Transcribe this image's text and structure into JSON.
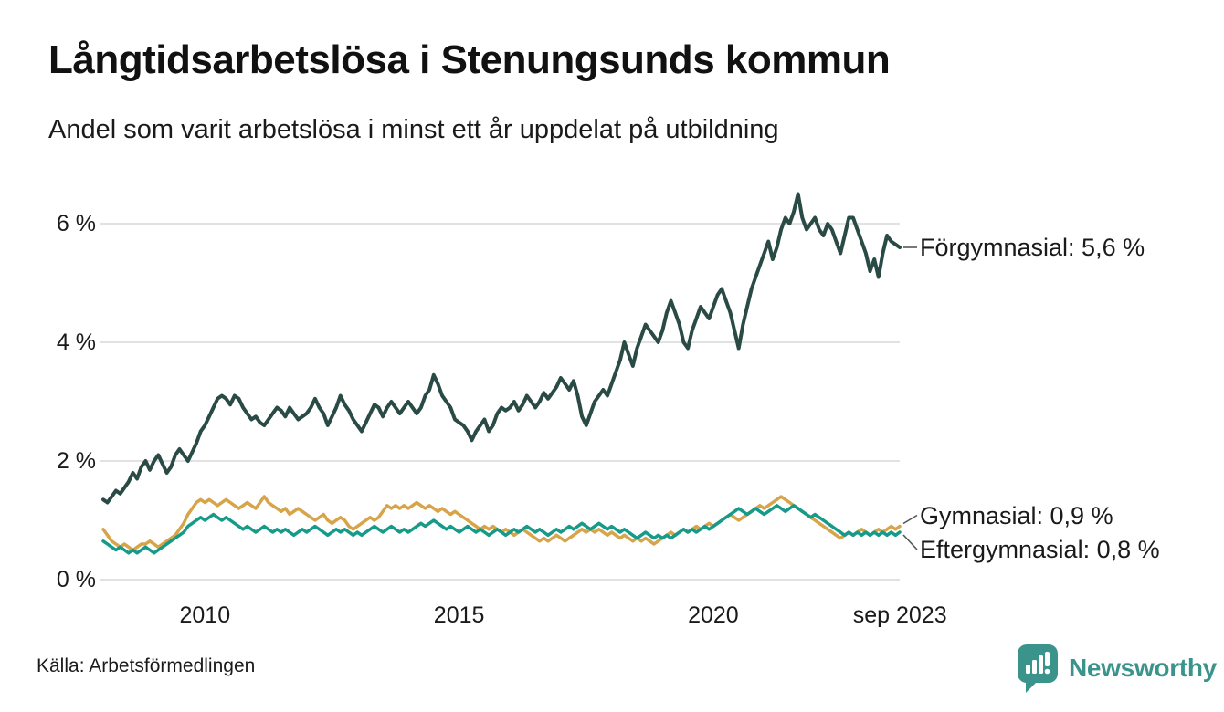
{
  "title": "Långtidsarbetslösa i Stenungsunds kommun",
  "subtitle": "Andel som varit arbetslösa i minst ett år uppdelat på utbildning",
  "source": "Källa: Arbetsförmedlingen",
  "branding": {
    "name": "Newsworthy",
    "color": "#3a948c",
    "icon": "newsworthy-speech-bubble-bar-chart-icon"
  },
  "colors": {
    "background": "#ffffff",
    "text": "#1a1a1a",
    "gridline": "#e2e2e2",
    "connector": "#555555",
    "forgymnasial": "#2a4b45",
    "gymnasial": "#d7a449",
    "eftergymnasial": "#169a89"
  },
  "chart_data": {
    "type": "line",
    "title": "Långtidsarbetslösa i Stenungsunds kommun",
    "subtitle": "Andel som varit arbetslösa i minst ett år uppdelat på utbildning",
    "unit": "%",
    "frequency": "monthly",
    "x_start": "2008-01",
    "x_end": "2023-09",
    "ylim": [
      0,
      6.8
    ],
    "grid": "horizontal",
    "legend_position": "end-of-line-labels",
    "yticks": [
      {
        "value": 0,
        "label": "0 %"
      },
      {
        "value": 2,
        "label": "2 %"
      },
      {
        "value": 4,
        "label": "4 %"
      },
      {
        "value": 6,
        "label": "6 %"
      }
    ],
    "xticks": [
      {
        "year": 2010.0,
        "label": "2010"
      },
      {
        "year": 2015.0,
        "label": "2015"
      },
      {
        "year": 2020.0,
        "label": "2020"
      },
      {
        "year": 2023.67,
        "label": "sep 2023"
      }
    ],
    "series": [
      {
        "name": "Förgymnasial",
        "end_label": "Förgymnasial: 5,6 %",
        "end_value": 5.6,
        "color": "#2a4b45",
        "stroke_width": 4,
        "values": [
          1.35,
          1.3,
          1.4,
          1.5,
          1.45,
          1.55,
          1.65,
          1.8,
          1.7,
          1.9,
          2.0,
          1.85,
          2.0,
          2.1,
          1.95,
          1.8,
          1.9,
          2.1,
          2.2,
          2.1,
          2.0,
          2.15,
          2.3,
          2.5,
          2.6,
          2.75,
          2.9,
          3.05,
          3.1,
          3.05,
          2.95,
          3.1,
          3.05,
          2.9,
          2.8,
          2.7,
          2.75,
          2.65,
          2.6,
          2.7,
          2.8,
          2.9,
          2.85,
          2.75,
          2.9,
          2.8,
          2.7,
          2.75,
          2.8,
          2.9,
          3.05,
          2.9,
          2.8,
          2.6,
          2.75,
          2.9,
          3.1,
          2.95,
          2.85,
          2.7,
          2.6,
          2.5,
          2.65,
          2.8,
          2.95,
          2.9,
          2.75,
          2.9,
          3.0,
          2.9,
          2.8,
          2.9,
          3.0,
          2.9,
          2.8,
          2.9,
          3.1,
          3.2,
          3.45,
          3.3,
          3.1,
          3.0,
          2.9,
          2.7,
          2.65,
          2.6,
          2.5,
          2.35,
          2.5,
          2.6,
          2.7,
          2.5,
          2.6,
          2.8,
          2.9,
          2.85,
          2.9,
          3.0,
          2.85,
          2.95,
          3.1,
          3.0,
          2.9,
          3.0,
          3.15,
          3.05,
          3.15,
          3.25,
          3.4,
          3.3,
          3.2,
          3.35,
          3.1,
          2.75,
          2.6,
          2.8,
          3.0,
          3.1,
          3.2,
          3.1,
          3.3,
          3.5,
          3.7,
          4.0,
          3.8,
          3.6,
          3.9,
          4.1,
          4.3,
          4.2,
          4.1,
          4.0,
          4.2,
          4.5,
          4.7,
          4.5,
          4.3,
          4.0,
          3.9,
          4.2,
          4.4,
          4.6,
          4.5,
          4.4,
          4.6,
          4.8,
          4.9,
          4.7,
          4.5,
          4.2,
          3.9,
          4.3,
          4.6,
          4.9,
          5.1,
          5.3,
          5.5,
          5.7,
          5.4,
          5.6,
          5.9,
          6.1,
          6.0,
          6.2,
          6.5,
          6.1,
          5.9,
          6.0,
          6.1,
          5.9,
          5.8,
          6.0,
          5.9,
          5.7,
          5.5,
          5.8,
          6.1,
          6.1,
          5.9,
          5.7,
          5.5,
          5.2,
          5.4,
          5.1,
          5.5,
          5.8,
          5.7,
          5.65,
          5.6
        ]
      },
      {
        "name": "Gymnasial",
        "end_label": "Gymnasial: 0,9 %",
        "end_value": 0.9,
        "color": "#d7a449",
        "stroke_width": 3.5,
        "values": [
          0.85,
          0.75,
          0.65,
          0.6,
          0.55,
          0.6,
          0.55,
          0.5,
          0.55,
          0.6,
          0.6,
          0.65,
          0.6,
          0.55,
          0.6,
          0.65,
          0.7,
          0.75,
          0.85,
          0.95,
          1.1,
          1.2,
          1.3,
          1.35,
          1.3,
          1.35,
          1.3,
          1.25,
          1.3,
          1.35,
          1.3,
          1.25,
          1.2,
          1.25,
          1.3,
          1.25,
          1.2,
          1.3,
          1.4,
          1.3,
          1.25,
          1.2,
          1.15,
          1.2,
          1.1,
          1.15,
          1.2,
          1.15,
          1.1,
          1.05,
          1.0,
          1.05,
          1.1,
          1.0,
          0.95,
          1.0,
          1.05,
          1.0,
          0.9,
          0.85,
          0.9,
          0.95,
          1.0,
          1.05,
          1.0,
          1.05,
          1.15,
          1.25,
          1.2,
          1.25,
          1.2,
          1.25,
          1.2,
          1.25,
          1.3,
          1.25,
          1.2,
          1.25,
          1.2,
          1.15,
          1.2,
          1.15,
          1.1,
          1.15,
          1.1,
          1.05,
          1.0,
          0.95,
          0.9,
          0.85,
          0.9,
          0.85,
          0.9,
          0.85,
          0.8,
          0.85,
          0.8,
          0.75,
          0.8,
          0.85,
          0.8,
          0.75,
          0.7,
          0.65,
          0.7,
          0.65,
          0.7,
          0.75,
          0.7,
          0.65,
          0.7,
          0.75,
          0.8,
          0.85,
          0.8,
          0.85,
          0.8,
          0.85,
          0.8,
          0.75,
          0.8,
          0.75,
          0.7,
          0.75,
          0.7,
          0.65,
          0.7,
          0.65,
          0.7,
          0.65,
          0.6,
          0.65,
          0.7,
          0.75,
          0.8,
          0.75,
          0.8,
          0.85,
          0.8,
          0.85,
          0.9,
          0.85,
          0.9,
          0.95,
          0.9,
          0.95,
          1.0,
          1.05,
          1.1,
          1.05,
          1.0,
          1.05,
          1.1,
          1.15,
          1.2,
          1.25,
          1.2,
          1.25,
          1.3,
          1.35,
          1.4,
          1.35,
          1.3,
          1.25,
          1.2,
          1.15,
          1.1,
          1.05,
          1.0,
          0.95,
          0.9,
          0.85,
          0.8,
          0.75,
          0.7,
          0.75,
          0.8,
          0.75,
          0.8,
          0.85,
          0.8,
          0.75,
          0.8,
          0.85,
          0.8,
          0.85,
          0.9,
          0.85,
          0.9
        ]
      },
      {
        "name": "Eftergymnasial",
        "end_label": "Eftergymnasial: 0,8 %",
        "end_value": 0.8,
        "color": "#169a89",
        "stroke_width": 3.5,
        "values": [
          0.65,
          0.6,
          0.55,
          0.5,
          0.55,
          0.5,
          0.45,
          0.5,
          0.45,
          0.5,
          0.55,
          0.5,
          0.45,
          0.5,
          0.55,
          0.6,
          0.65,
          0.7,
          0.75,
          0.8,
          0.9,
          0.95,
          1.0,
          1.05,
          1.0,
          1.05,
          1.1,
          1.05,
          1.0,
          1.05,
          1.0,
          0.95,
          0.9,
          0.85,
          0.9,
          0.85,
          0.8,
          0.85,
          0.9,
          0.85,
          0.8,
          0.85,
          0.8,
          0.85,
          0.8,
          0.75,
          0.8,
          0.85,
          0.8,
          0.85,
          0.9,
          0.85,
          0.8,
          0.75,
          0.8,
          0.85,
          0.8,
          0.85,
          0.8,
          0.75,
          0.8,
          0.75,
          0.8,
          0.85,
          0.9,
          0.85,
          0.8,
          0.85,
          0.9,
          0.85,
          0.8,
          0.85,
          0.8,
          0.85,
          0.9,
          0.95,
          0.9,
          0.95,
          1.0,
          0.95,
          0.9,
          0.85,
          0.9,
          0.85,
          0.8,
          0.85,
          0.9,
          0.85,
          0.8,
          0.85,
          0.8,
          0.75,
          0.8,
          0.85,
          0.8,
          0.75,
          0.8,
          0.85,
          0.8,
          0.85,
          0.9,
          0.85,
          0.8,
          0.85,
          0.8,
          0.75,
          0.8,
          0.85,
          0.8,
          0.85,
          0.9,
          0.85,
          0.9,
          0.95,
          0.9,
          0.85,
          0.9,
          0.95,
          0.9,
          0.85,
          0.9,
          0.85,
          0.8,
          0.85,
          0.8,
          0.75,
          0.7,
          0.75,
          0.8,
          0.75,
          0.7,
          0.75,
          0.7,
          0.75,
          0.7,
          0.75,
          0.8,
          0.85,
          0.8,
          0.85,
          0.8,
          0.85,
          0.9,
          0.85,
          0.9,
          0.95,
          1.0,
          1.05,
          1.1,
          1.15,
          1.2,
          1.15,
          1.1,
          1.15,
          1.2,
          1.15,
          1.1,
          1.15,
          1.2,
          1.25,
          1.2,
          1.15,
          1.2,
          1.25,
          1.2,
          1.15,
          1.1,
          1.05,
          1.1,
          1.05,
          1.0,
          0.95,
          0.9,
          0.85,
          0.8,
          0.75,
          0.8,
          0.75,
          0.8,
          0.75,
          0.8,
          0.75,
          0.8,
          0.75,
          0.8,
          0.75,
          0.8,
          0.75,
          0.8
        ]
      }
    ]
  }
}
